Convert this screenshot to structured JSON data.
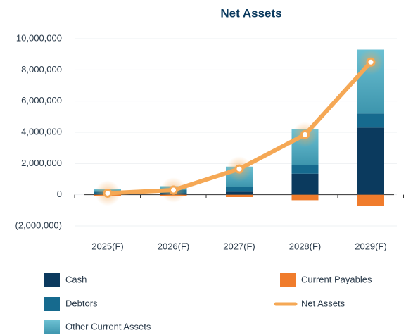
{
  "chart_data": {
    "type": "bar",
    "title": "Net Assets",
    "categories": [
      "2025(F)",
      "2026(F)",
      "2027(F)",
      "2028(F)",
      "2029(F)"
    ],
    "series": [
      {
        "name": "Cash",
        "color": "#0b3a5e",
        "values": [
          50000,
          100000,
          200000,
          1350000,
          4300000
        ]
      },
      {
        "name": "Debtors",
        "color": "#166a8e",
        "values": [
          150000,
          200000,
          300000,
          550000,
          900000
        ]
      },
      {
        "name": "Other Current Assets",
        "color": "#5bb5c8",
        "values": [
          150000,
          250000,
          1300000,
          2300000,
          4100000
        ]
      },
      {
        "name": "Current Payables",
        "color": "#f07c2c",
        "values": [
          -100000,
          -100000,
          -150000,
          -350000,
          -700000
        ]
      },
      {
        "name": "Net Assets",
        "color": "#f5a855",
        "type": "line",
        "values": [
          100000,
          300000,
          1650000,
          3850000,
          8500000
        ]
      }
    ],
    "ylim": [
      -2000000,
      10000000
    ],
    "yticks": [
      {
        "value": -2000000,
        "label": "(2,000,000)"
      },
      0,
      {
        "value": 2000000,
        "label": "2,000,000"
      },
      {
        "value": 4000000,
        "label": "4,000,000"
      },
      {
        "value": 6000000,
        "label": "6,000,000"
      },
      {
        "value": 8000000,
        "label": "8,000,000"
      },
      {
        "value": 10000000,
        "label": "10,000,000"
      }
    ],
    "grid": true
  }
}
